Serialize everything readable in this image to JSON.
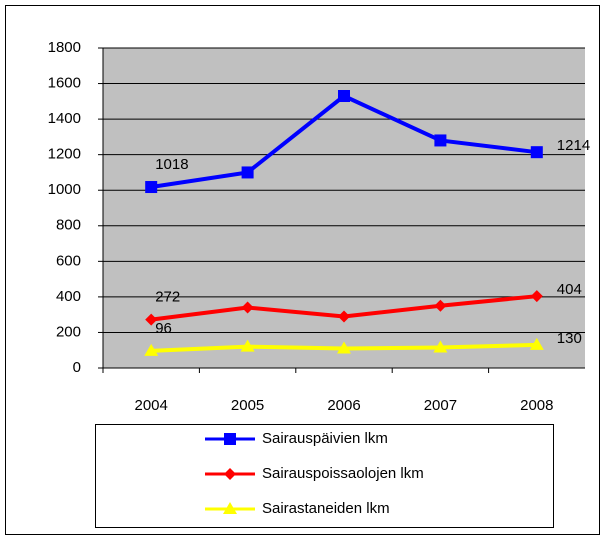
{
  "chart_data": {
    "type": "line",
    "categories": [
      "2004",
      "2005",
      "2006",
      "2007",
      "2008"
    ],
    "series": [
      {
        "name": "Sairauspäivien lkm",
        "color": "#0000ff",
        "marker": "square",
        "values": [
          1018,
          1100,
          1530,
          1280,
          1214
        ],
        "value_labels": [
          "1018",
          null,
          null,
          null,
          "1214"
        ]
      },
      {
        "name": "Sairauspoissaolojen lkm",
        "color": "#ff0000",
        "marker": "diamond",
        "values": [
          272,
          340,
          290,
          350,
          404
        ],
        "value_labels": [
          "272",
          null,
          null,
          null,
          "404"
        ]
      },
      {
        "name": "Sairastaneiden lkm",
        "color": "#ffff00",
        "marker": "triangle",
        "values": [
          96,
          120,
          110,
          115,
          130
        ],
        "value_labels": [
          "96",
          null,
          null,
          null,
          "130"
        ]
      }
    ],
    "ylim": [
      0,
      1800
    ],
    "yticks": [
      0,
      200,
      400,
      600,
      800,
      1000,
      1200,
      1400,
      1600,
      1800
    ],
    "grid": true,
    "plot_background": "#c0c0c0",
    "legend": "bottom"
  }
}
